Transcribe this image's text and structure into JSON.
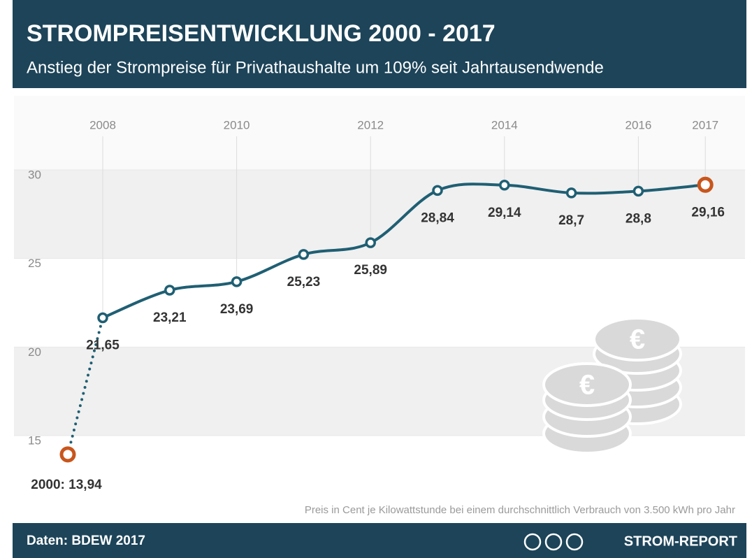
{
  "chart_data": {
    "type": "line",
    "title": "STROMPREISENTWICKLUNG 2000 - 2017",
    "subtitle": "Anstieg der Strompreise für Privathaushalte um 109% seit Jahrtausendwende",
    "note": "Preis in Cent je Kilowattstunde bei einem durchschnittlich Verbrauch von 3.500 kWh pro Jahr",
    "source": "Daten: BDEW 2017",
    "brand": "STROM-REPORT",
    "categories": [
      null,
      "2008",
      null,
      "2010",
      null,
      "2012",
      null,
      "2014",
      null,
      "2016",
      "2017"
    ],
    "values": [
      13.94,
      21.65,
      23.21,
      23.69,
      25.23,
      25.89,
      28.84,
      29.14,
      28.7,
      28.8,
      29.16
    ],
    "value_labels": [
      "2000: 13,94",
      "21,65",
      "23,21",
      "23,69",
      "25,23",
      "25,89",
      "28,84",
      "29,14",
      "28,7",
      "28,8",
      "29,16"
    ],
    "color": "#1f5f73",
    "highlight_color": "#c8561c",
    "ylim": [
      12,
      33
    ],
    "yticks": [
      15,
      20,
      25,
      30
    ]
  }
}
